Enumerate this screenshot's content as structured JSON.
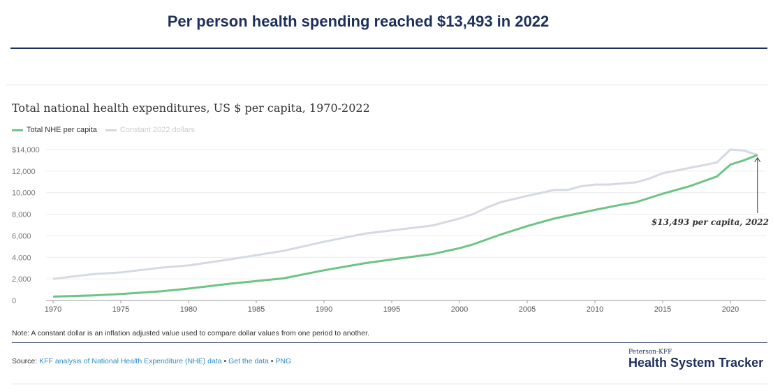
{
  "headline": "Per person health spending reached $13,493 in 2022",
  "note": "Note: A constant dollar is an inflation adjusted value used to compare dollar values from one period to another.",
  "source": {
    "label": "Source:",
    "link1": "KFF analysis of National Health Expenditure (NHE) data",
    "sep": " • ",
    "link2": "Get the data",
    "link3": "PNG"
  },
  "logo": {
    "small": "Peterson-KFF",
    "big": "Health System Tracker"
  },
  "colors": {
    "nhe": "#6cc485",
    "constant": "#d5d9e2"
  },
  "chart_data": {
    "type": "line",
    "title": "Total national health expenditures, US $ per capita, 1970-2022",
    "xlim": [
      1970,
      2022
    ],
    "ylim": [
      0,
      14000
    ],
    "xticks": [
      1970,
      1975,
      1980,
      1985,
      1990,
      1995,
      2000,
      2005,
      2010,
      2015,
      2020
    ],
    "yticks": [
      0,
      2000,
      4000,
      6000,
      8000,
      10000,
      12000,
      14000
    ],
    "ytick_labels": [
      "0",
      "2,000",
      "4,000",
      "6,000",
      "8,000",
      "10,000",
      "12,000",
      "$14,000"
    ],
    "annotation": "$13,493 per capita, 2022",
    "series": [
      {
        "name": "Total NHE per capita",
        "x": [
          1970,
          1973,
          1975,
          1978,
          1980,
          1983,
          1985,
          1987,
          1990,
          1993,
          1995,
          1998,
          2000,
          2001,
          2003,
          2005,
          2007,
          2010,
          2012,
          2013,
          2015,
          2017,
          2019,
          2020,
          2021,
          2022
        ],
        "values": [
          355,
          470,
          600,
          850,
          1100,
          1550,
          1800,
          2050,
          2800,
          3450,
          3800,
          4300,
          4850,
          5200,
          6100,
          6900,
          7600,
          8400,
          8900,
          9100,
          9900,
          10600,
          11500,
          12600,
          13000,
          13493
        ]
      },
      {
        "name": "Constant 2022 dollars",
        "x": [
          1970,
          1973,
          1975,
          1978,
          1980,
          1983,
          1985,
          1987,
          1990,
          1993,
          1995,
          1998,
          2000,
          2001,
          2002,
          2003,
          2005,
          2007,
          2008,
          2009,
          2010,
          2011,
          2013,
          2014,
          2015,
          2017,
          2019,
          2020,
          2021,
          2022
        ],
        "values": [
          2000,
          2450,
          2600,
          3050,
          3250,
          3800,
          4200,
          4600,
          5450,
          6200,
          6500,
          6950,
          7600,
          8000,
          8600,
          9100,
          9700,
          10250,
          10250,
          10600,
          10750,
          10750,
          10950,
          11300,
          11800,
          12300,
          12800,
          14000,
          13900,
          13493
        ]
      }
    ]
  }
}
